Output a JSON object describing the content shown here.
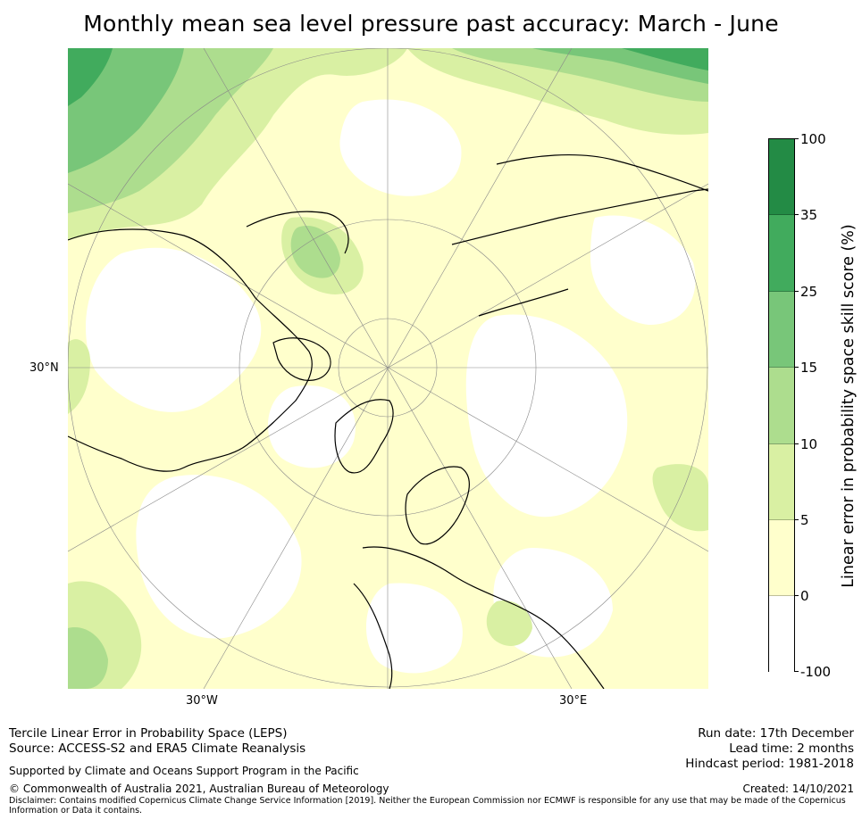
{
  "title": "Monthly mean sea level pressure past accuracy: March - June",
  "map": {
    "projection": "north polar stereographic",
    "lat_labels": [
      "30°N"
    ],
    "lon_labels": [
      "30°W",
      "30°E"
    ]
  },
  "colorbar": {
    "title": "Linear error in probability space skill score (%)",
    "ticks": [
      "100",
      "35",
      "25",
      "15",
      "10",
      "5",
      "0",
      "-100"
    ],
    "bins": [
      {
        "range": [
          35,
          100
        ],
        "color": "#238b45"
      },
      {
        "range": [
          25,
          35
        ],
        "color": "#41ab5d"
      },
      {
        "range": [
          15,
          25
        ],
        "color": "#78c679"
      },
      {
        "range": [
          10,
          15
        ],
        "color": "#addd8e"
      },
      {
        "range": [
          5,
          10
        ],
        "color": "#d9f0a3"
      },
      {
        "range": [
          0,
          5
        ],
        "color": "#ffffcc"
      },
      {
        "range": [
          -100,
          0
        ],
        "color": "#ffffff"
      }
    ]
  },
  "footer": {
    "line1": "Tercile Linear Error in Probability Space (LEPS)",
    "line2": "Source: ACCESS-S2 and ERA5 Climate Reanalysis",
    "supported": "Supported by Climate and Oceans Support Program in the Pacific",
    "copyright": "© Commonwealth of Australia 2021, Australian Bureau of Meteorology",
    "disclaimer": "Disclaimer: Contains modified Copernicus Climate Change Service Information [2019]. Neither the European Commission nor ECMWF is responsible for any use that may be made of the Copernicus Information or Data it contains.",
    "run_date": "Run date: 17th December",
    "lead_time": "Lead time: 2 months",
    "hindcast": "Hindcast period: 1981-2018",
    "created": "Created: 14/10/2021"
  }
}
